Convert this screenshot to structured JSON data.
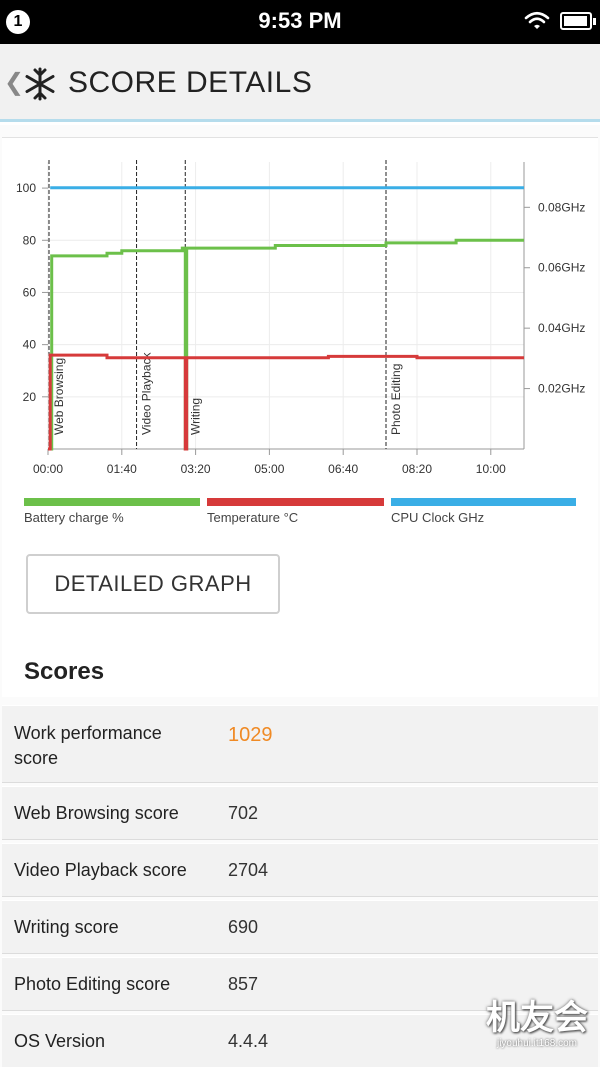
{
  "status_bar": {
    "notification_count": "1",
    "time": "9:53 PM",
    "battery_level": 0.95
  },
  "header": {
    "back_icon": "chevron-left-icon",
    "logo_icon": "snowflake-icon",
    "title": "SCORE DETAILS"
  },
  "chart_data": {
    "type": "line",
    "x_tick_labels": [
      "00:00",
      "01:40",
      "03:20",
      "05:00",
      "06:40",
      "08:20",
      "10:00"
    ],
    "x_tick_seconds": [
      0,
      100,
      200,
      300,
      400,
      500,
      600
    ],
    "xlim_seconds": [
      0,
      645
    ],
    "y_left": {
      "ticks": [
        20,
        40,
        60,
        80,
        100
      ],
      "range": [
        0,
        110
      ]
    },
    "y_right": {
      "ticks": [
        "0.02GHz",
        "0.04GHz",
        "0.06GHz",
        "0.08GHz"
      ],
      "tick_values": [
        0.02,
        0.04,
        0.06,
        0.08
      ],
      "range": [
        0,
        0.095
      ]
    },
    "task_markers": [
      {
        "label": "Web Browsing",
        "t": 0
      },
      {
        "label": "Video Playback",
        "t": 120
      },
      {
        "label": "Writing",
        "t": 186
      },
      {
        "label": "Photo Editing",
        "t": 458
      }
    ],
    "series": [
      {
        "name": "Battery charge %",
        "color": "#6cc04a",
        "axis": "left",
        "points": [
          [
            0,
            0
          ],
          [
            5,
            0
          ],
          [
            5,
            74
          ],
          [
            80,
            74
          ],
          [
            80,
            75
          ],
          [
            100,
            75
          ],
          [
            100,
            76
          ],
          [
            182,
            76
          ],
          [
            182,
            77
          ],
          [
            186,
            77
          ],
          [
            186,
            0
          ],
          [
            188,
            0
          ],
          [
            188,
            77
          ],
          [
            308,
            77
          ],
          [
            308,
            78
          ],
          [
            458,
            78
          ],
          [
            458,
            79
          ],
          [
            553,
            79
          ],
          [
            553,
            80
          ],
          [
            645,
            80
          ]
        ]
      },
      {
        "name": "Temperature °C",
        "color": "#d63a3a",
        "axis": "left",
        "points": [
          [
            0,
            0
          ],
          [
            3,
            0
          ],
          [
            3,
            36
          ],
          [
            80,
            36
          ],
          [
            80,
            35
          ],
          [
            184,
            35
          ],
          [
            186,
            35
          ],
          [
            186,
            0
          ],
          [
            188,
            0
          ],
          [
            188,
            35
          ],
          [
            380,
            35
          ],
          [
            380,
            35.5
          ],
          [
            500,
            35.5
          ],
          [
            500,
            35
          ],
          [
            645,
            35
          ]
        ]
      },
      {
        "name": "CPU Clock GHz",
        "color": "#3aaee6",
        "axis": "right",
        "points": [
          [
            3,
            0.0865
          ],
          [
            645,
            0.0865
          ]
        ]
      }
    ]
  },
  "legend": [
    {
      "label": "Battery charge %",
      "color": "#6cc04a"
    },
    {
      "label": "Temperature °C",
      "color": "#d63a3a"
    },
    {
      "label": "CPU Clock GHz",
      "color": "#3aaee6"
    }
  ],
  "detailed_graph_label": "DETAILED GRAPH",
  "scores_heading": "Scores",
  "scores": [
    {
      "label_line1": "Work performance",
      "label_line2": "score",
      "value": "1029",
      "highlight": true
    },
    {
      "label_line1": "Web Browsing score",
      "label_line2": "",
      "value": "702",
      "highlight": false
    },
    {
      "label_line1": "Video Playback score",
      "label_line2": "",
      "value": "2704",
      "highlight": false
    },
    {
      "label_line1": "Writing score",
      "label_line2": "",
      "value": "690",
      "highlight": false
    },
    {
      "label_line1": "Photo Editing score",
      "label_line2": "",
      "value": "857",
      "highlight": false
    },
    {
      "label_line1": "OS Version",
      "label_line2": "",
      "value": "4.4.4",
      "highlight": false
    }
  ],
  "watermark": {
    "text_cn": "机友会",
    "url": "jiyouhui.it168.com"
  }
}
